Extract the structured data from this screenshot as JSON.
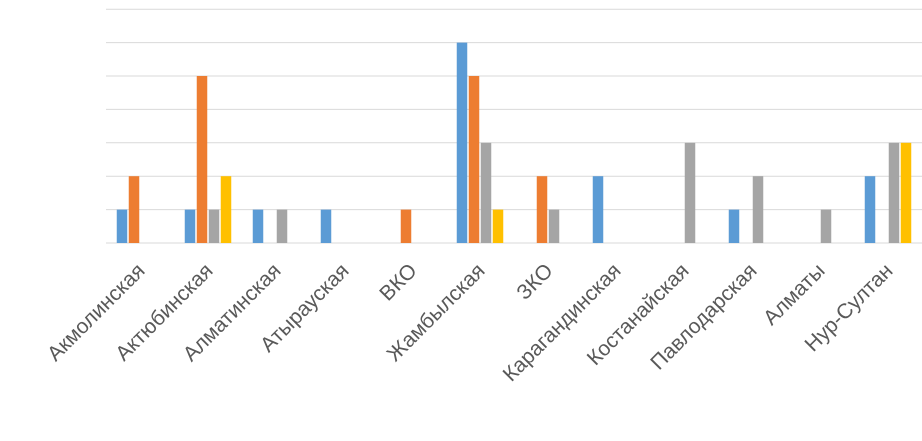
{
  "chart_data": {
    "type": "bar",
    "title": "",
    "xlabel": "",
    "ylabel": "",
    "ylim": [
      0,
      7
    ],
    "grid": true,
    "legend": "none",
    "categories": [
      "Акмолинская",
      "Актюбинская",
      "Алматинская",
      "Атырауская",
      "ВКО",
      "Жамбылская",
      "ЗКО",
      "Карагандинская",
      "Костанайская",
      "Павлодарская",
      "Алматы",
      "Нур-Султан"
    ],
    "series": [
      {
        "color": "#5b9bd5",
        "values": [
          1,
          1,
          1,
          1,
          0,
          6,
          0,
          2,
          0,
          1,
          0,
          2
        ]
      },
      {
        "color": "#ed7d31",
        "values": [
          2,
          5,
          0,
          0,
          1,
          5,
          2,
          0,
          0,
          0,
          0,
          0
        ]
      },
      {
        "color": "#a5a5a5",
        "values": [
          0,
          1,
          1,
          0,
          0,
          3,
          1,
          0,
          3,
          2,
          1,
          3
        ]
      },
      {
        "color": "#ffc000",
        "values": [
          0,
          2,
          0,
          0,
          0,
          1,
          0,
          0,
          0,
          0,
          0,
          3
        ]
      }
    ]
  }
}
